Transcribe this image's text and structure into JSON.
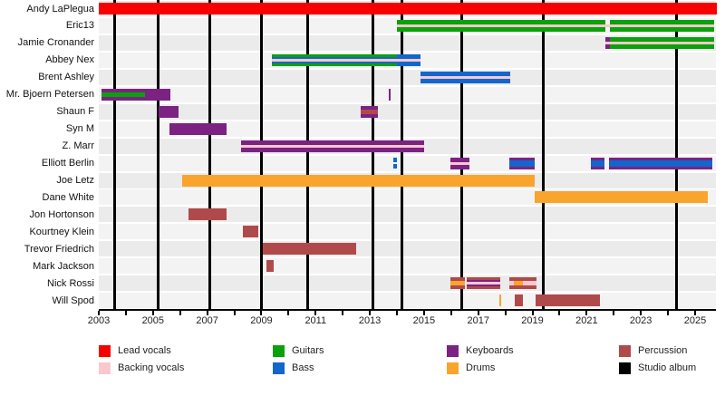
{
  "chart_data": {
    "type": "bar",
    "subtype": "timeline-gantt-band-members",
    "title": "",
    "xlabel": "",
    "ylabel": "",
    "grid": "vertical-album-lines",
    "legend_position": "bottom",
    "x_axis": {
      "min_year": 2003,
      "max_year": 2025.8,
      "major_tick_labels": [
        "2003",
        "2005",
        "2007",
        "2009",
        "2011",
        "2013",
        "2015",
        "2017",
        "2019",
        "2021",
        "2023",
        "2025"
      ],
      "minor_tick_every_years": 1
    },
    "colors": {
      "lead": "#f80000",
      "backing": "#f8c8cd",
      "guitars": "#0ba10b",
      "bass": "#1366cc",
      "keyboards": "#7b2283",
      "drums": "#f9a42c",
      "percussion": "#b04a4a",
      "album": "#000000"
    },
    "legend": {
      "items": [
        {
          "label": "Lead vocals",
          "color": "lead"
        },
        {
          "label": "Backing vocals",
          "color": "backing"
        },
        {
          "label": "Guitars",
          "color": "guitars"
        },
        {
          "label": "Bass",
          "color": "bass"
        },
        {
          "label": "Keyboards",
          "color": "keyboards"
        },
        {
          "label": "Drums",
          "color": "drums"
        },
        {
          "label": "Percussion",
          "color": "percussion"
        },
        {
          "label": "Studio album",
          "color": "album"
        }
      ]
    },
    "studio_album_lines_years": [
      2003.6,
      2005.2,
      2007.1,
      2009.0,
      2010.7,
      2013.1,
      2014.2,
      2016.4,
      2019.4,
      2024.3
    ],
    "members": [
      {
        "name": "Andy LaPlegua",
        "segments": [
          {
            "from": 2003.0,
            "to": 2025.8,
            "layers": [
              {
                "color": "lead",
                "h": 13
              }
            ]
          }
        ]
      },
      {
        "name": "Eric13",
        "segments": [
          {
            "from": 2014.0,
            "to": 2021.69,
            "layers": [
              {
                "color": "guitars",
                "h": 13
              },
              {
                "color": "backing",
                "h": 3
              }
            ]
          },
          {
            "from": 2021.69,
            "to": 2021.86,
            "layers": [
              {
                "color": "backing",
                "h": 3
              }
            ]
          },
          {
            "from": 2021.86,
            "to": 2025.71,
            "layers": [
              {
                "color": "guitars",
                "h": 13
              },
              {
                "color": "backing",
                "h": 3
              }
            ]
          }
        ]
      },
      {
        "name": "Jamie Cronander",
        "segments": [
          {
            "from": 2021.69,
            "to": 2022.13,
            "layers": [
              {
                "color": "keyboards",
                "h": 13
              },
              {
                "color": "backing",
                "h": 3
              }
            ]
          },
          {
            "from": 2021.86,
            "to": 2025.71,
            "layers": [
              {
                "color": "guitars",
                "h": 13
              },
              {
                "color": "backing",
                "h": 3
              }
            ]
          }
        ]
      },
      {
        "name": "Abbey Nex",
        "segments": [
          {
            "from": 2009.39,
            "to": 2014.0,
            "layers": [
              {
                "color": "guitars",
                "h": 13
              },
              {
                "color": "bass",
                "h": 7
              },
              {
                "color": "backing",
                "h": 3
              }
            ]
          },
          {
            "from": 2014.0,
            "to": 2014.87,
            "layers": [
              {
                "color": "bass",
                "h": 13
              },
              {
                "color": "backing",
                "h": 3
              }
            ]
          }
        ]
      },
      {
        "name": "Brent Ashley",
        "segments": [
          {
            "from": 2014.87,
            "to": 2018.18,
            "layers": [
              {
                "color": "bass",
                "h": 13
              },
              {
                "color": "backing",
                "h": 3
              }
            ]
          }
        ]
      },
      {
        "name": "Mr. Bjoern Petersen",
        "segments": [
          {
            "from": 2003.1,
            "to": 2005.64,
            "layers": [
              {
                "color": "keyboards",
                "h": 13
              },
              {
                "color": "guitars",
                "h": 5,
                "to": 2004.71
              }
            ]
          },
          {
            "type": "tick",
            "at": 2013.73,
            "color": "keyboards"
          }
        ]
      },
      {
        "name": "Shaun F",
        "segments": [
          {
            "from": 2005.21,
            "to": 2005.94,
            "layers": [
              {
                "color": "keyboards",
                "h": 13
              }
            ]
          },
          {
            "from": 2012.66,
            "to": 2013.3,
            "layers": [
              {
                "color": "keyboards",
                "h": 13
              },
              {
                "color": "percussion",
                "h": 5
              }
            ]
          }
        ]
      },
      {
        "name": "Syn M",
        "segments": [
          {
            "from": 2005.61,
            "to": 2007.72,
            "layers": [
              {
                "color": "keyboards",
                "h": 13
              }
            ]
          }
        ]
      },
      {
        "name": "Z. Marr",
        "segments": [
          {
            "from": 2008.25,
            "to": 2015.0,
            "layers": [
              {
                "color": "keyboards",
                "h": 13
              },
              {
                "color": "backing",
                "h": 3
              }
            ]
          }
        ]
      },
      {
        "name": "Elliott Berlin",
        "segments": [
          {
            "type": "dash",
            "at": 2013.93,
            "color": "bass"
          },
          {
            "from": 2015.97,
            "to": 2016.68,
            "layers": [
              {
                "color": "keyboards",
                "h": 13
              },
              {
                "color": "backing",
                "h": 3
              }
            ]
          },
          {
            "from": 2018.15,
            "to": 2019.08,
            "layers": [
              {
                "color": "keyboards",
                "h": 13
              },
              {
                "color": "bass",
                "h": 7
              }
            ]
          },
          {
            "from": 2021.16,
            "to": 2021.66,
            "layers": [
              {
                "color": "keyboards",
                "h": 13
              },
              {
                "color": "bass",
                "h": 7
              }
            ]
          },
          {
            "from": 2021.83,
            "to": 2025.64,
            "layers": [
              {
                "color": "keyboards",
                "h": 13
              },
              {
                "color": "bass",
                "h": 7
              }
            ]
          }
        ]
      },
      {
        "name": "Joe Letz",
        "segments": [
          {
            "from": 2006.08,
            "to": 2019.08,
            "layers": [
              {
                "color": "drums",
                "h": 13
              }
            ]
          }
        ]
      },
      {
        "name": "Dane White",
        "segments": [
          {
            "from": 2019.08,
            "to": 2025.47,
            "layers": [
              {
                "color": "drums",
                "h": 13
              }
            ]
          }
        ]
      },
      {
        "name": "Jon Hortonson",
        "segments": [
          {
            "from": 2006.31,
            "to": 2007.72,
            "layers": [
              {
                "color": "percussion",
                "h": 13
              }
            ]
          }
        ]
      },
      {
        "name": "Kourtney Klein",
        "segments": [
          {
            "from": 2008.32,
            "to": 2008.89,
            "layers": [
              {
                "color": "percussion",
                "h": 13
              }
            ]
          }
        ]
      },
      {
        "name": "Trevor Friedrich",
        "segments": [
          {
            "from": 2009.05,
            "to": 2012.5,
            "layers": [
              {
                "color": "percussion",
                "h": 13
              }
            ]
          }
        ]
      },
      {
        "name": "Mark Jackson",
        "segments": [
          {
            "from": 2009.19,
            "to": 2009.45,
            "layers": [
              {
                "color": "percussion",
                "h": 13
              }
            ]
          }
        ]
      },
      {
        "name": "Nick Rossi",
        "segments": [
          {
            "from": 2015.97,
            "to": 2016.51,
            "layers": [
              {
                "color": "percussion",
                "h": 13
              },
              {
                "color": "drums",
                "h": 5
              }
            ]
          },
          {
            "from": 2016.58,
            "to": 2017.81,
            "layers": [
              {
                "color": "percussion",
                "h": 13
              },
              {
                "color": "keyboards",
                "h": 7
              },
              {
                "color": "backing",
                "h": 3
              }
            ]
          },
          {
            "from": 2018.15,
            "to": 2019.15,
            "layers": [
              {
                "color": "percussion",
                "h": 13
              },
              {
                "color": "backing",
                "h": 5
              },
              {
                "color": "drums",
                "h": 5,
                "from": 2018.32,
                "to": 2018.65
              }
            ]
          }
        ]
      },
      {
        "name": "Will Spod",
        "segments": [
          {
            "type": "tick",
            "at": 2017.8,
            "color": "drums"
          },
          {
            "from": 2018.35,
            "to": 2018.65,
            "layers": [
              {
                "color": "percussion",
                "h": 13
              }
            ]
          },
          {
            "from": 2019.1,
            "to": 2021.49,
            "layers": [
              {
                "color": "percussion",
                "h": 13
              }
            ]
          }
        ]
      }
    ]
  }
}
